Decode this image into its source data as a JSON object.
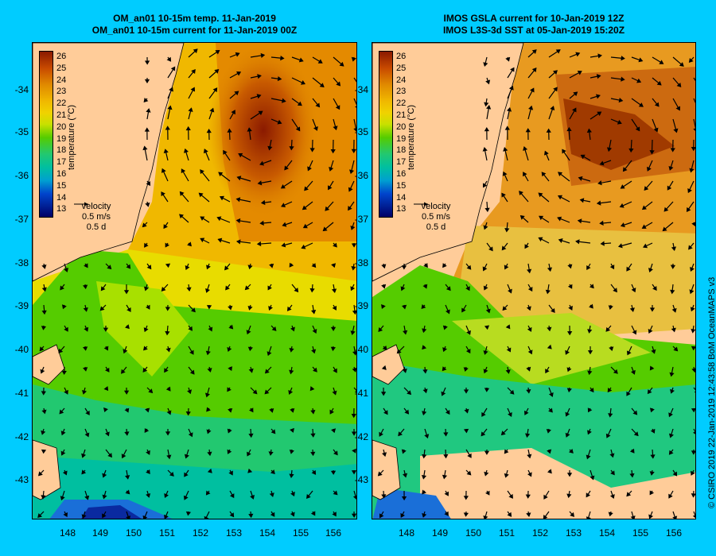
{
  "panels": [
    {
      "title_line1": "OM_an01 10-15m temp. 11-Jan-2019",
      "title_line2": "OM_an01 10-15m current for 11-Jan-2019 00Z",
      "legend_label": "temperature (°C)",
      "velocity_label": "velocity",
      "velocity_scale": "0.5 m/s",
      "velocity_time": "0.5 d"
    },
    {
      "title_line1": "IMOS GSLA current for 10-Jan-2019 12Z",
      "title_line2": "IMOS L3S-3d SST at 05-Jan-2019 15:20Z",
      "legend_label": "temperature (°C)",
      "velocity_label": "velocity",
      "velocity_scale": "0.5 m/s",
      "velocity_time": "0.5 d"
    }
  ],
  "axes": {
    "y_ticks": [
      "-34",
      "-35",
      "-36",
      "-37",
      "-38",
      "-39",
      "-40",
      "-41",
      "-42",
      "-43"
    ],
    "x_ticks": [
      "148",
      "149",
      "150",
      "151",
      "152",
      "153",
      "154",
      "155",
      "156"
    ]
  },
  "legend_ticks": [
    "26",
    "25",
    "24",
    "23",
    "22",
    "21",
    "20",
    "19",
    "18",
    "17",
    "16",
    "15",
    "14",
    "13"
  ],
  "colors": {
    "background": "#00ccff",
    "land": "#ffcc99",
    "warm": "#8b1a00",
    "orange": "#e08a00",
    "yellow": "#f0d200",
    "green": "#33cc00",
    "teal": "#00bfa0",
    "blue": "#0044cc",
    "navy": "#000066"
  },
  "credit": "© CSIRO 2019   22-Jan-2019 12:43:58 BoM OceanMAPS v3"
}
